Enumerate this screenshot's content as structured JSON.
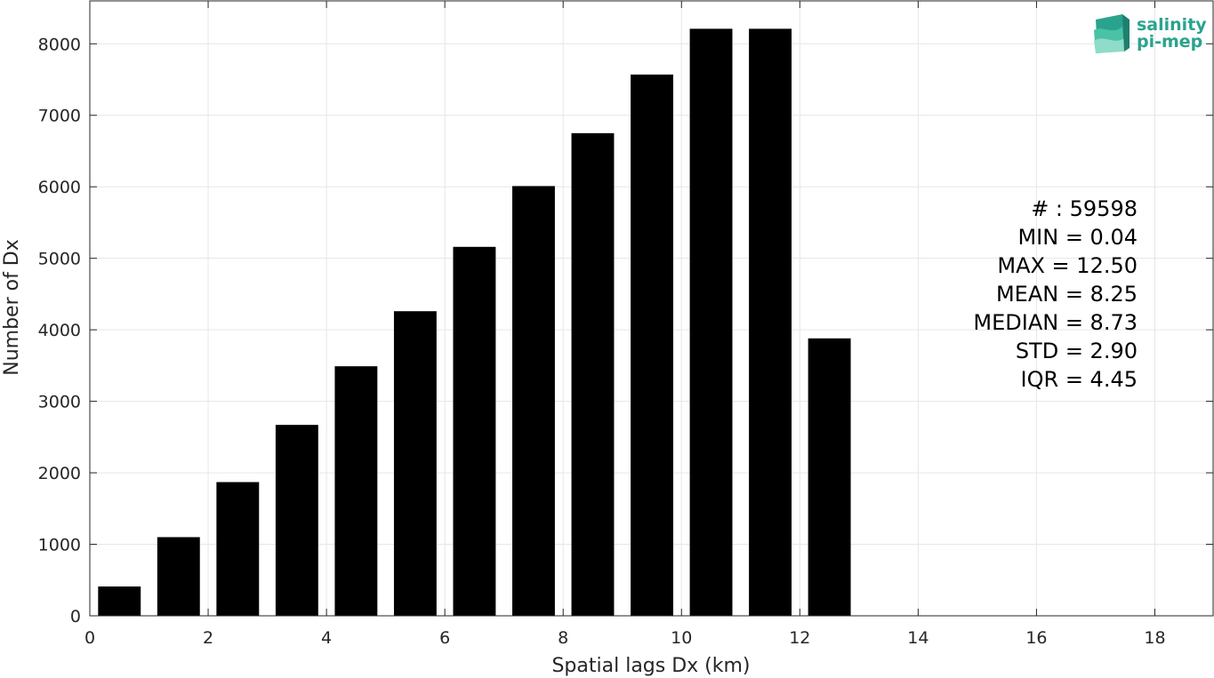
{
  "chart_data": {
    "type": "bar",
    "x": [
      0.5,
      1.5,
      2.5,
      3.5,
      4.5,
      5.5,
      6.5,
      7.5,
      8.5,
      9.5,
      10.5,
      11.5,
      12.5
    ],
    "values": [
      410,
      1100,
      1870,
      2670,
      3490,
      4260,
      5160,
      6010,
      6750,
      7570,
      8210,
      8210,
      3880
    ],
    "xlabel": "Spatial lags Dx (km)",
    "ylabel": "Number of Dx",
    "xlim": [
      0,
      19
    ],
    "ylim": [
      0,
      8600
    ],
    "xticks": [
      "0",
      "2",
      "4",
      "6",
      "8",
      "10",
      "12",
      "14",
      "16",
      "18"
    ],
    "yticks": [
      "0",
      "1000",
      "2000",
      "3000",
      "4000",
      "5000",
      "6000",
      "7000",
      "8000"
    ],
    "grid": true,
    "bar_color": "#000000",
    "annotations": [
      "# : 59598",
      "MIN = 0.04",
      "MAX =  12.50",
      "MEAN = 8.25",
      "MEDIAN = 8.73",
      "STD = 2.90",
      "IQR = 4.45"
    ]
  },
  "logo": {
    "line1": "salinity",
    "line2": "pi-mep",
    "color": "#2aa38e"
  }
}
